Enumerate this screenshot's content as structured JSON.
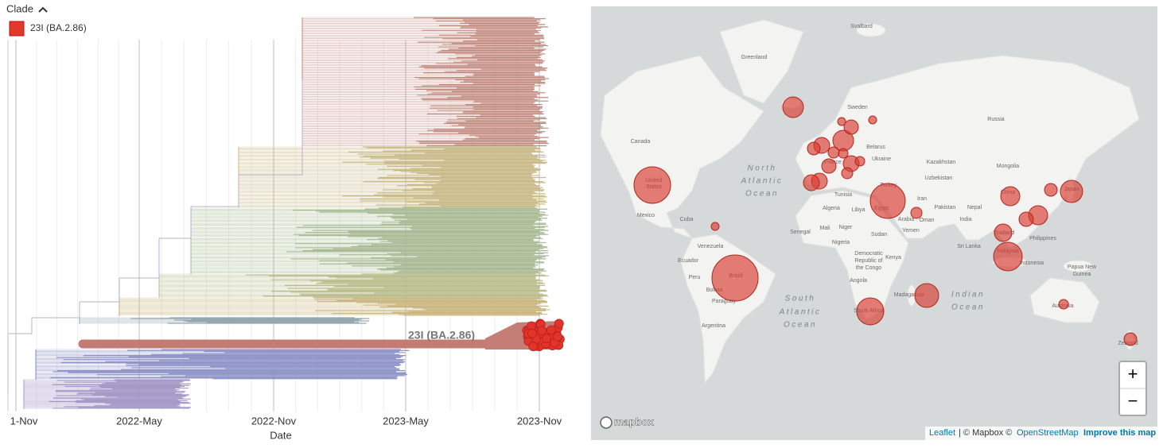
{
  "legend": {
    "title": "Clade",
    "items": [
      "23I (BA.2.86)"
    ]
  },
  "tree": {
    "axis_label": "Date",
    "ticks": [
      "1-Nov",
      "2022-May",
      "2022-Nov",
      "2023-May",
      "2023-Nov"
    ],
    "branch_label": "23I (BA.2.86)"
  },
  "map": {
    "labels": [
      "Svalbard",
      "Greenland",
      "Canada",
      "Sweden",
      "Russia",
      "Belarus",
      "Ukraine",
      "Kazakhstan",
      "Mongolia",
      "Uzbekistan",
      "Turkey",
      "Tunisia",
      "Iran",
      "Algeria",
      "Libya",
      "Pakistan",
      "Nepal",
      "India",
      "Arabia",
      "Oman",
      "Yemen",
      "Mexico",
      "Cuba",
      "Senegal",
      "Mali",
      "Niger",
      "Nigeria",
      "Sudan",
      "Venezuela",
      "Ecuador",
      "Peru",
      "Brazil",
      "Bolivia",
      "Paraguay",
      "Argentina",
      "Kenya",
      "Democratic",
      "Republic of",
      "the Congo",
      "Angola",
      "Madagascar",
      "South Africa",
      "Sri Lanka",
      "Thailand",
      "Philippines",
      "Malaysia",
      "Indonesia",
      "Papua New",
      "Guinea",
      "Australia",
      "Zealand",
      "United",
      "States",
      "China",
      "Japan",
      "France",
      "Egypt"
    ],
    "ocean_labels": [
      "North",
      "Atlantic",
      "Ocean",
      "South",
      "Atlantic",
      "Ocean",
      "Indian",
      "Ocean"
    ],
    "logo": "mapbox",
    "zoom_in": "+",
    "zoom_out": "−",
    "attribution": {
      "leaflet": "Leaflet",
      "sep": "| © Mapbox ©",
      "osm": "OpenStreetMap",
      "improve": "Improve this map"
    }
  }
}
